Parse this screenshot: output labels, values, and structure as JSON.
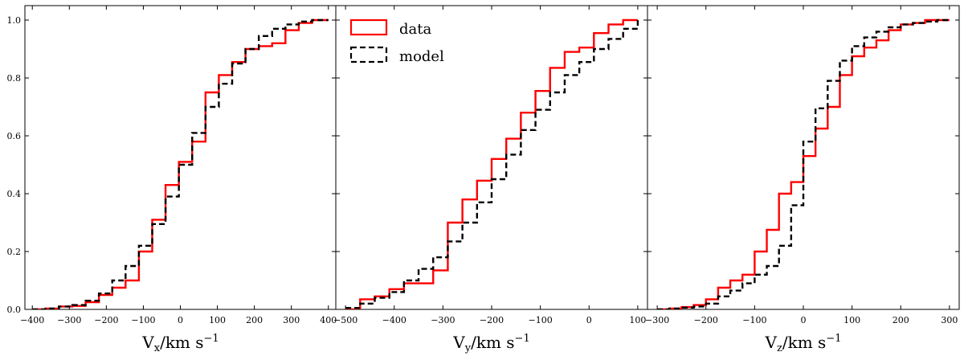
{
  "colors": {
    "data": "#ff0000",
    "model": "#000000"
  },
  "legend": {
    "data_label": "data",
    "model_label": "model",
    "location": "upper-left of middle panel"
  },
  "chart_data": [
    {
      "type": "line",
      "drawstyle": "steps",
      "xlabel": "Vₓ/km s⁻¹",
      "xlabel_main": "V",
      "xlabel_sub": "x",
      "xlabel_unit": "/km s",
      "xlabel_exp": "−1",
      "xlim": [
        -420,
        420
      ],
      "ylim": [
        0,
        1.05
      ],
      "xticks": [
        "−400",
        "−300",
        "−200",
        "−100",
        "0",
        "100",
        "200",
        "300",
        "400"
      ],
      "xtick_values": [
        -400,
        -300,
        -200,
        -100,
        0,
        100,
        200,
        300,
        400
      ],
      "yticks": [
        "0.0",
        "0.2",
        "0.4",
        "0.6",
        "0.8",
        "1.0"
      ],
      "ytick_values": [
        0,
        0.2,
        0.4,
        0.6,
        0.8,
        1.0
      ],
      "series": [
        {
          "name": "data",
          "x": [
            -400,
            -364,
            -328,
            -292,
            -256,
            -220,
            -184,
            -148,
            -112,
            -76,
            -40,
            -4,
            32,
            68,
            104,
            140,
            176,
            212,
            248,
            284,
            320,
            356,
            400
          ],
          "y": [
            0,
            0.003,
            0.01,
            0.012,
            0.025,
            0.05,
            0.075,
            0.1,
            0.2,
            0.31,
            0.43,
            0.51,
            0.58,
            0.75,
            0.81,
            0.855,
            0.9,
            0.91,
            0.92,
            0.965,
            0.99,
            1.0,
            1.0
          ]
        },
        {
          "name": "model",
          "x": [
            -400,
            -364,
            -328,
            -292,
            -256,
            -220,
            -184,
            -148,
            -112,
            -76,
            -40,
            -4,
            32,
            68,
            104,
            140,
            176,
            212,
            248,
            284,
            320,
            356,
            400
          ],
          "y": [
            0,
            0.003,
            0.01,
            0.015,
            0.03,
            0.055,
            0.1,
            0.15,
            0.22,
            0.295,
            0.39,
            0.5,
            0.61,
            0.7,
            0.78,
            0.85,
            0.9,
            0.945,
            0.97,
            0.985,
            0.995,
            1.0,
            1.0
          ]
        }
      ]
    },
    {
      "type": "line",
      "drawstyle": "steps",
      "xlabel_main": "V",
      "xlabel_sub": "y",
      "xlabel_unit": "/km s",
      "xlabel_exp": "−1",
      "xlim": [
        -520,
        120
      ],
      "ylim": [
        0,
        1.05
      ],
      "xticks": [
        "−500",
        "−400",
        "−300",
        "−200",
        "−100",
        "0",
        "100"
      ],
      "xtick_values": [
        -500,
        -400,
        -300,
        -200,
        -100,
        0,
        100
      ],
      "yticks": [
        "0.0",
        "0.2",
        "0.4",
        "0.6",
        "0.8",
        "1.0"
      ],
      "ytick_values": [
        0,
        0.2,
        0.4,
        0.6,
        0.8,
        1.0
      ],
      "series": [
        {
          "name": "data",
          "x": [
            -500,
            -470,
            -440,
            -410,
            -380,
            -350,
            -320,
            -290,
            -260,
            -230,
            -200,
            -170,
            -140,
            -110,
            -80,
            -50,
            -20,
            10,
            40,
            70,
            100
          ],
          "y": [
            0,
            0.035,
            0.045,
            0.07,
            0.09,
            0.09,
            0.135,
            0.3,
            0.38,
            0.445,
            0.52,
            0.59,
            0.68,
            0.755,
            0.835,
            0.89,
            0.905,
            0.955,
            0.985,
            1.0,
            1.0
          ]
        },
        {
          "name": "model",
          "x": [
            -500,
            -470,
            -440,
            -410,
            -380,
            -350,
            -320,
            -290,
            -260,
            -230,
            -200,
            -170,
            -140,
            -110,
            -80,
            -50,
            -20,
            10,
            40,
            70,
            100
          ],
          "y": [
            0.005,
            0.02,
            0.04,
            0.06,
            0.1,
            0.14,
            0.18,
            0.235,
            0.3,
            0.37,
            0.45,
            0.535,
            0.62,
            0.69,
            0.75,
            0.81,
            0.855,
            0.9,
            0.935,
            0.97,
            1.0
          ]
        }
      ]
    },
    {
      "type": "line",
      "drawstyle": "steps",
      "xlabel_main": "V",
      "xlabel_sub": "z",
      "xlabel_unit": "/km s",
      "xlabel_exp": "−1",
      "xlim": [
        -320,
        320
      ],
      "ylim": [
        0,
        1.05
      ],
      "xticks": [
        "−300",
        "−200",
        "−100",
        "0",
        "100",
        "200",
        "300"
      ],
      "xtick_values": [
        -300,
        -200,
        -100,
        0,
        100,
        200,
        300
      ],
      "yticks": [
        "0.0",
        "0.2",
        "0.4",
        "0.6",
        "0.8",
        "1.0"
      ],
      "ytick_values": [
        0,
        0.2,
        0.4,
        0.6,
        0.8,
        1.0
      ],
      "series": [
        {
          "name": "data",
          "x": [
            -300,
            -275,
            -250,
            -225,
            -200,
            -175,
            -150,
            -125,
            -100,
            -75,
            -50,
            -25,
            0,
            25,
            50,
            75,
            100,
            125,
            150,
            175,
            200,
            225,
            250,
            275,
            300
          ],
          "y": [
            0,
            0.003,
            0.008,
            0.015,
            0.035,
            0.075,
            0.1,
            0.12,
            0.2,
            0.275,
            0.4,
            0.44,
            0.53,
            0.625,
            0.7,
            0.81,
            0.875,
            0.905,
            0.93,
            0.965,
            0.985,
            0.99,
            1.0,
            1.0,
            1.0
          ]
        },
        {
          "name": "model",
          "x": [
            -300,
            -275,
            -250,
            -225,
            -200,
            -175,
            -150,
            -125,
            -100,
            -75,
            -50,
            -25,
            0,
            25,
            50,
            75,
            100,
            125,
            150,
            175,
            200,
            225,
            250,
            275,
            300
          ],
          "y": [
            0,
            0.003,
            0.006,
            0.01,
            0.02,
            0.045,
            0.065,
            0.09,
            0.12,
            0.15,
            0.22,
            0.36,
            0.58,
            0.695,
            0.79,
            0.86,
            0.91,
            0.94,
            0.96,
            0.975,
            0.985,
            0.99,
            0.995,
            1.0,
            1.0
          ]
        }
      ]
    }
  ]
}
